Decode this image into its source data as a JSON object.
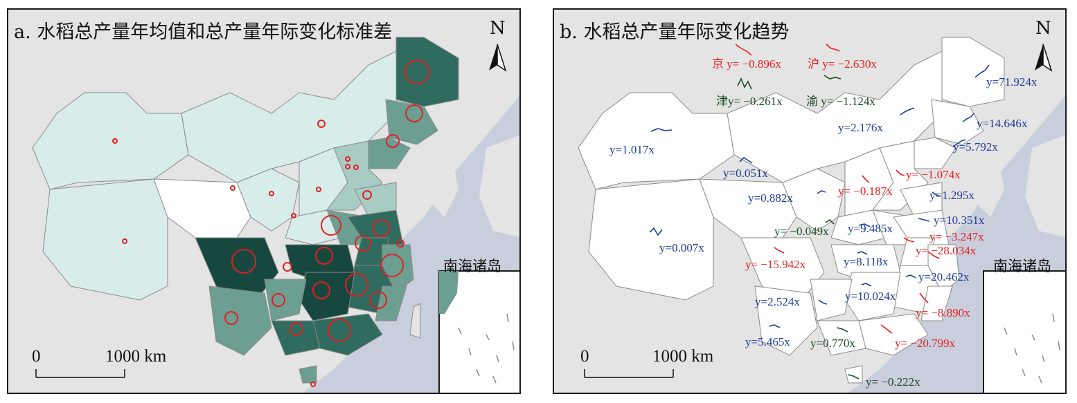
{
  "panel_a": {
    "title": "a. 水稻总产量年均值和总产量年际变化标准差",
    "north": "N",
    "scale_zero": "0",
    "scale_label": "1000 km",
    "inset_title": "南海诸岛",
    "colors": {
      "low": "#d8ecea",
      "mid1": "#a8cbc4",
      "mid2": "#6c9e92",
      "high": "#2f6b5e",
      "top": "#17483f",
      "circle": "#e02020"
    }
  },
  "panel_b": {
    "title": "b. 水稻总产量年际变化趋势",
    "north": "N",
    "scale_zero": "0",
    "scale_label": "1000 km",
    "inset_title": "南海诸岛",
    "colors": {
      "increase": "#1c3c96",
      "decrease": "#e81e1e",
      "small": "#1a4a22"
    },
    "special_labels": [
      {
        "name": "京",
        "eq": "y= −0.896x",
        "color": "red"
      },
      {
        "name": "沪",
        "eq": "y= −2.630x",
        "color": "red"
      },
      {
        "name": "津",
        "eq": "y= −0.261x",
        "color": "green"
      },
      {
        "name": "渝",
        "eq": "y= −1.124x",
        "color": "green"
      }
    ],
    "trend_labels": [
      {
        "text": "y=71.924x",
        "color": "blue"
      },
      {
        "text": "y=14.646x",
        "color": "blue"
      },
      {
        "text": "y=5.792x",
        "color": "blue"
      },
      {
        "text": "y=2.176x",
        "color": "blue"
      },
      {
        "text": "y=1.017x",
        "color": "blue"
      },
      {
        "text": "y=0.051x",
        "color": "blue"
      },
      {
        "text": "y= −1.074x",
        "color": "red"
      },
      {
        "text": "y= −0.187x",
        "color": "red"
      },
      {
        "text": "y=1.295x",
        "color": "blue"
      },
      {
        "text": "y=0.882x",
        "color": "blue"
      },
      {
        "text": "y=10.351x",
        "color": "blue"
      },
      {
        "text": "y= −0.049x",
        "color": "green"
      },
      {
        "text": "y=9.485x",
        "color": "blue"
      },
      {
        "text": "y= −3.247x",
        "color": "red"
      },
      {
        "text": "y=0.007x",
        "color": "blue"
      },
      {
        "text": "y= −28.034x",
        "color": "red"
      },
      {
        "text": "y= −15.942x",
        "color": "red"
      },
      {
        "text": "y=8.118x",
        "color": "blue"
      },
      {
        "text": "y=20.462x",
        "color": "blue"
      },
      {
        "text": "y=2.524x",
        "color": "blue"
      },
      {
        "text": "y=10.024x",
        "color": "blue"
      },
      {
        "text": "y= −8.890x",
        "color": "red"
      },
      {
        "text": "y=5.465x",
        "color": "blue"
      },
      {
        "text": "y=0.770x",
        "color": "green"
      },
      {
        "text": "y= −20.799x",
        "color": "red"
      },
      {
        "text": "y= −0.222x",
        "color": "green"
      }
    ]
  }
}
